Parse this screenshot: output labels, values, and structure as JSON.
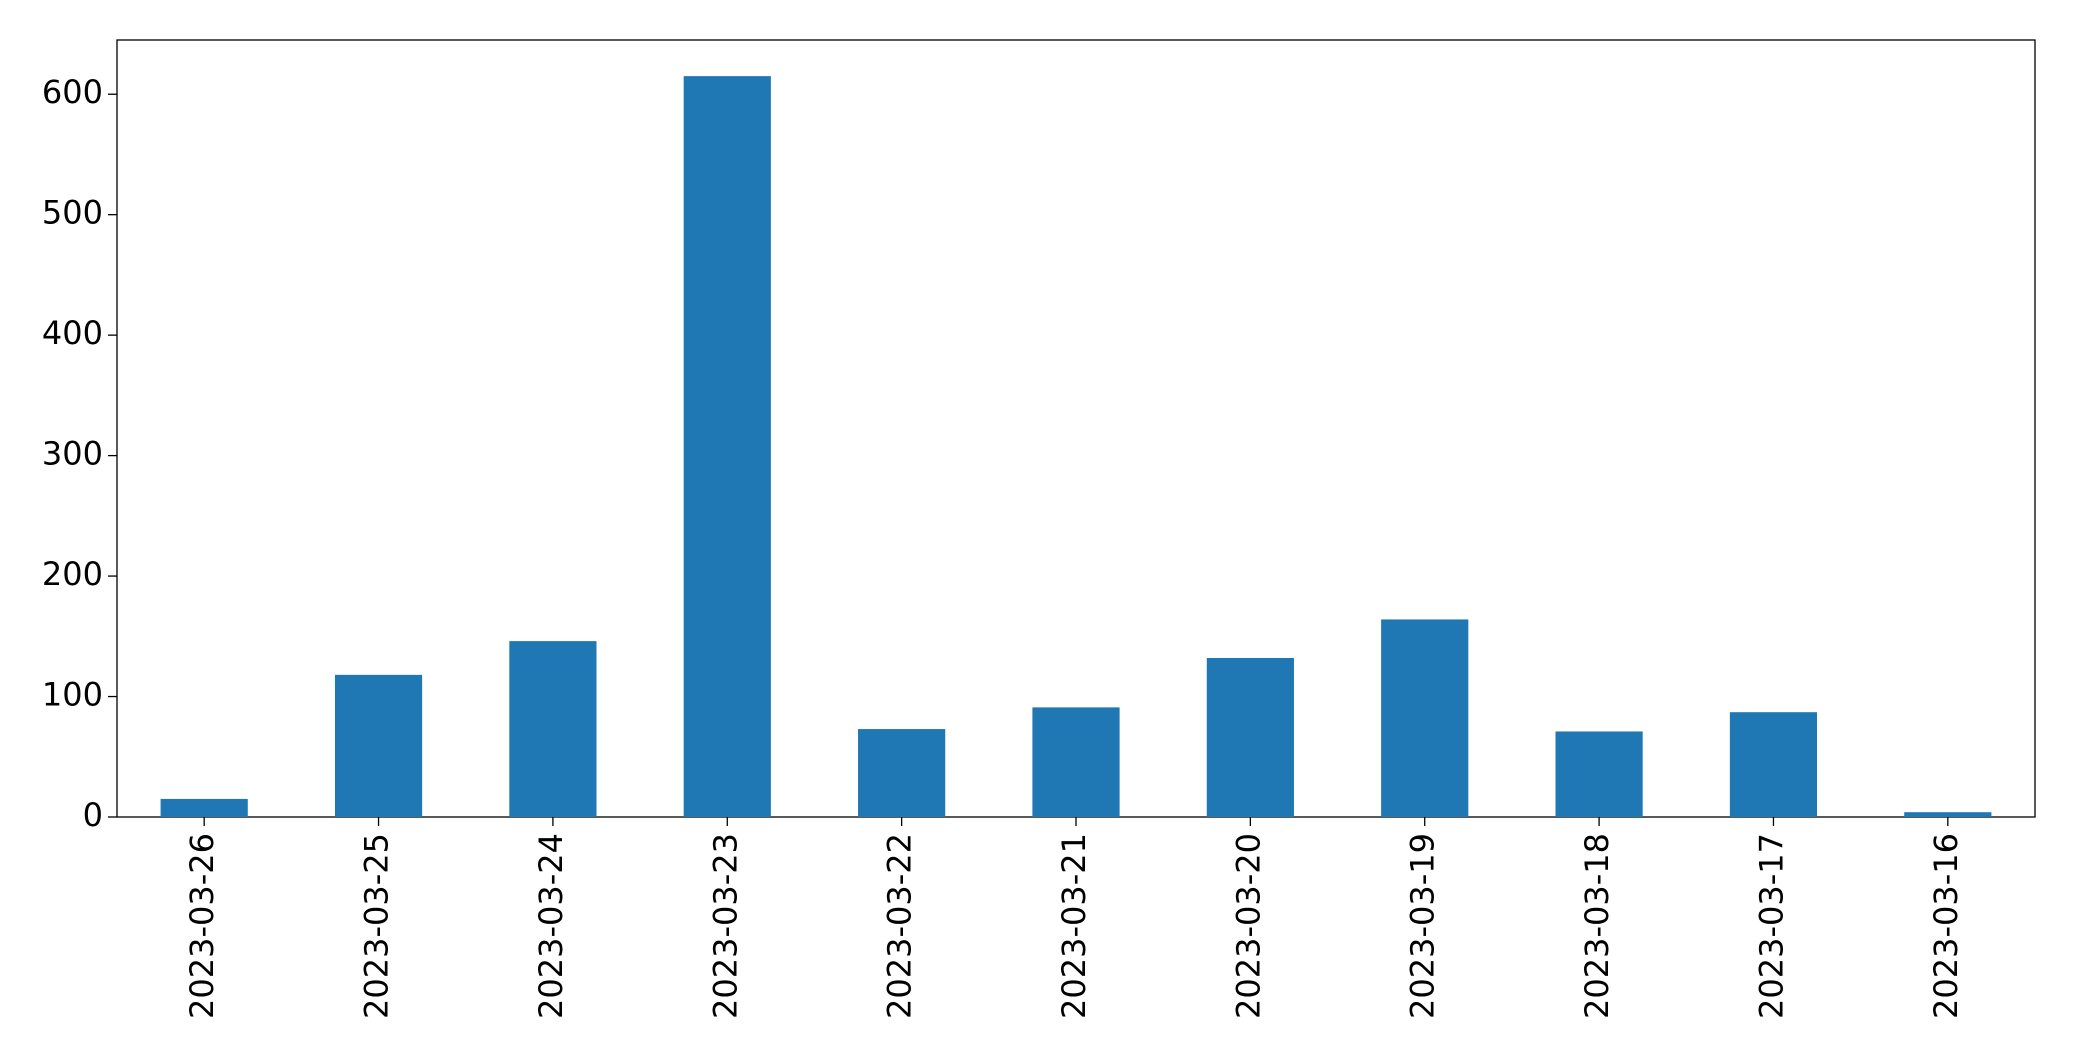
{
  "chart_data": {
    "type": "bar",
    "categories": [
      "2023-03-26",
      "2023-03-25",
      "2023-03-24",
      "2023-03-23",
      "2023-03-22",
      "2023-03-21",
      "2023-03-20",
      "2023-03-19",
      "2023-03-18",
      "2023-03-17",
      "2023-03-16"
    ],
    "values": [
      15,
      118,
      146,
      615,
      73,
      91,
      132,
      164,
      71,
      87,
      4
    ],
    "color": "#1f77b4",
    "ylim": [
      0,
      645
    ],
    "yticks": [
      0,
      100,
      200,
      300,
      400,
      500,
      600
    ],
    "grid": false
  }
}
